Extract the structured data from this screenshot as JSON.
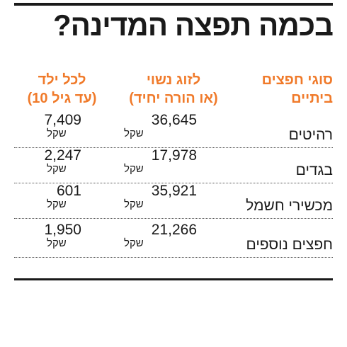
{
  "title": "בכמה תפצה המדינה?",
  "headers": {
    "category": [
      "סוגי חפצים",
      "ביתיים"
    ],
    "couple": [
      "לזוג נשוי",
      "(או הורה יחיד)"
    ],
    "child": [
      "לכל ילד",
      "(עד גיל 10)"
    ]
  },
  "unit": "שקל",
  "rows": [
    {
      "category": "רהיטים",
      "couple": "36,645",
      "child": "7,409"
    },
    {
      "category": "בגדים",
      "couple": "17,978",
      "child": "2,247"
    },
    {
      "category": "מכשירי חשמל",
      "couple": "35,921",
      "child": "601"
    },
    {
      "category": "חפצים נוספים",
      "couple": "21,266",
      "child": "1,950"
    }
  ],
  "colors": {
    "accent": "#f07a2a",
    "text": "#1a1a1a",
    "rule": "#1a1a1a"
  }
}
